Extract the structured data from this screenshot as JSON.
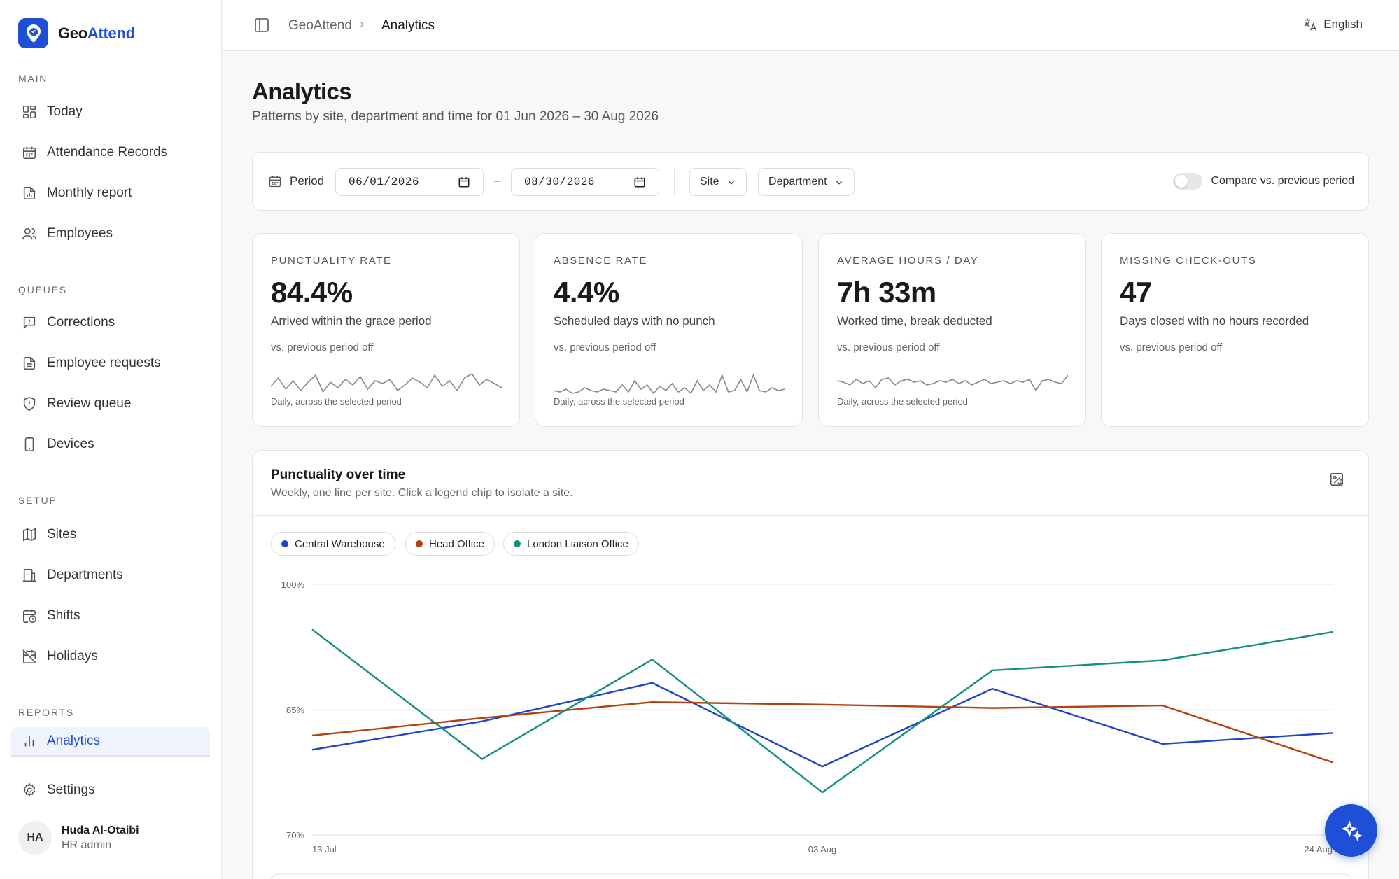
{
  "brand": {
    "name_a": "Geo",
    "name_b": "Attend",
    "accent": "#1e4fd6"
  },
  "sidebar": {
    "sections": {
      "main": "MAIN",
      "queues": "QUEUES",
      "setup": "SETUP",
      "reports": "REPORTS"
    },
    "items": {
      "today": {
        "label": "Today",
        "icon": "grid-icon"
      },
      "attendance": {
        "label": "Attendance Records",
        "icon": "calendar-icon"
      },
      "monthly": {
        "label": "Monthly report",
        "icon": "report-icon"
      },
      "employees": {
        "label": "Employees",
        "icon": "users-icon"
      },
      "corrections": {
        "label": "Corrections",
        "icon": "message-alert-icon"
      },
      "requests": {
        "label": "Employee requests",
        "icon": "document-icon"
      },
      "review": {
        "label": "Review queue",
        "icon": "shield-alert-icon"
      },
      "devices": {
        "label": "Devices",
        "icon": "phone-icon"
      },
      "sites": {
        "label": "Sites",
        "icon": "map-icon"
      },
      "departments": {
        "label": "Departments",
        "icon": "building-icon"
      },
      "shifts": {
        "label": "Shifts",
        "icon": "calendar-clock-icon"
      },
      "holidays": {
        "label": "Holidays",
        "icon": "calendar-off-icon"
      },
      "analytics": {
        "label": "Analytics",
        "icon": "bar-chart-icon"
      },
      "settings": {
        "label": "Settings",
        "icon": "gear-icon"
      }
    },
    "user": {
      "initials": "HA",
      "name": "Huda Al-Otaibi",
      "role": "HR admin"
    }
  },
  "topbar": {
    "crumb_root": "GeoAttend",
    "crumb_current": "Analytics",
    "language": "English"
  },
  "page": {
    "title": "Analytics",
    "subtitle": "Patterns by site, department and time for 01 Jun 2026 – 30 Aug 2026"
  },
  "filters": {
    "period_label": "Period",
    "start_date": "06/01/2026",
    "end_date": "08/30/2026",
    "dash": "–",
    "site_label": "Site",
    "department_label": "Department",
    "compare_label": "Compare vs. previous period",
    "compare_on": false
  },
  "kpis": [
    {
      "label": "PUNCTUALITY RATE",
      "value": "84.4%",
      "desc": "Arrived within the grace period",
      "vs": "vs. previous period off",
      "foot": "Daily, across the selected period",
      "spark": [
        8,
        14,
        6,
        12,
        5,
        11,
        16,
        4,
        11,
        7,
        13,
        9,
        15,
        6,
        12,
        10,
        13,
        5,
        9,
        14,
        11,
        7,
        16,
        8,
        12,
        5,
        14,
        17,
        9,
        13,
        10,
        7
      ]
    },
    {
      "label": "ABSENCE RATE",
      "value": "4.4%",
      "desc": "Scheduled days with no punch",
      "vs": "vs. previous period off",
      "foot": "Daily, across the selected period",
      "spark": [
        5,
        4,
        6,
        3,
        4,
        7,
        5,
        4,
        6,
        5,
        4,
        9,
        4,
        12,
        6,
        9,
        3,
        8,
        5,
        10,
        4,
        7,
        3,
        12,
        5,
        9,
        4,
        16,
        4,
        5,
        13,
        4,
        16,
        5,
        4,
        7,
        5,
        6
      ]
    },
    {
      "label": "AVERAGE HOURS / DAY",
      "value": "7h 33m",
      "desc": "Worked time, break deducted",
      "vs": "vs. previous period off",
      "foot": "Daily, across the selected period",
      "spark": [
        12,
        11,
        9,
        13,
        10,
        12,
        7,
        13,
        14,
        9,
        12,
        13,
        11,
        12,
        9,
        10,
        12,
        11,
        13,
        10,
        12,
        9,
        11,
        13,
        10,
        11,
        12,
        10,
        12,
        11,
        13,
        5,
        12,
        13,
        11,
        10,
        16
      ]
    },
    {
      "label": "MISSING CHECK-OUTS",
      "value": "47",
      "desc": "Days closed with no hours recorded",
      "vs": "vs. previous period off",
      "foot": "",
      "spark": []
    }
  ],
  "chart": {
    "title": "Punctuality over time",
    "subtitle": "Weekly, one line per site. Click a legend chip to isolate a site.",
    "export_icon": "image-download-icon"
  },
  "chart_data": {
    "type": "line",
    "x": [
      "13 Jul",
      "20 Jul",
      "27 Jul",
      "03 Aug",
      "10 Aug",
      "17 Aug",
      "24 Aug"
    ],
    "x_tick_labels": [
      "13 Jul",
      "03 Aug",
      "24 Aug"
    ],
    "y_tick_labels": [
      "100%",
      "85%",
      "70%"
    ],
    "ylim": [
      70,
      100
    ],
    "grid": true,
    "legend": "top-left",
    "series": [
      {
        "name": "Central Warehouse",
        "color": "#1e44c9",
        "values": [
          80.2,
          83.6,
          88.2,
          78.2,
          87.5,
          80.9,
          82.2
        ]
      },
      {
        "name": "Head Office",
        "color": "#b5410f",
        "values": [
          81.9,
          84.0,
          85.9,
          85.6,
          85.2,
          85.5,
          78.7
        ]
      },
      {
        "name": "London Liaison Office",
        "color": "#138f82",
        "values": [
          94.6,
          79.1,
          91.0,
          75.1,
          89.7,
          90.9,
          94.3
        ]
      }
    ]
  },
  "fab": {
    "icon": "sparkles-icon"
  }
}
